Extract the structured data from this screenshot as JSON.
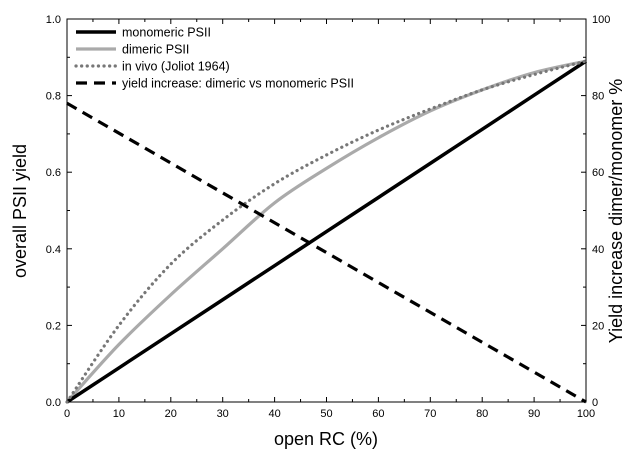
{
  "chart_data": {
    "type": "line",
    "title": "",
    "xlabel": "open RC (%)",
    "ylabel": "overall PSII yield",
    "y2label": "Yield increase dimer/monomer %",
    "xlim": [
      0,
      100
    ],
    "ylim": [
      0,
      1.0
    ],
    "y2lim": [
      0,
      100
    ],
    "xticks": [
      0,
      10,
      20,
      30,
      40,
      50,
      60,
      70,
      80,
      90,
      100
    ],
    "yticks": [
      0.0,
      0.2,
      0.4,
      0.6,
      0.8,
      1.0
    ],
    "y2ticks": [
      0,
      20,
      40,
      60,
      80,
      100
    ],
    "xtick_labels": [
      "0",
      "10",
      "20",
      "30",
      "40",
      "50",
      "60",
      "70",
      "80",
      "90",
      "100"
    ],
    "ytick_labels": [
      "0.0",
      "0.2",
      "0.4",
      "0.6",
      "0.8",
      "1.0"
    ],
    "y2tick_labels": [
      "0",
      "20",
      "40",
      "60",
      "80",
      "100"
    ],
    "grid": false,
    "legend_position": "top-left",
    "series": [
      {
        "name": "monomeric PSII",
        "axis": "left",
        "style": "solid",
        "color": "#000000",
        "x": [
          0,
          10,
          20,
          30,
          40,
          50,
          60,
          70,
          80,
          90,
          100
        ],
        "y": [
          0.0,
          0.089,
          0.178,
          0.267,
          0.356,
          0.445,
          0.534,
          0.623,
          0.712,
          0.801,
          0.89
        ]
      },
      {
        "name": "dimeric PSII",
        "axis": "left",
        "style": "solid",
        "color": "#aaaaaa",
        "x": [
          0,
          10,
          20,
          30,
          40,
          50,
          60,
          70,
          80,
          90,
          100
        ],
        "y": [
          0.0,
          0.15,
          0.28,
          0.4,
          0.52,
          0.61,
          0.69,
          0.76,
          0.815,
          0.86,
          0.89
        ]
      },
      {
        "name": "in vivo (Joliot 1964)",
        "axis": "left",
        "style": "dotted",
        "color": "#777777",
        "x": [
          0,
          10,
          20,
          30,
          40,
          50,
          60,
          70,
          80,
          90,
          100
        ],
        "y": [
          0.0,
          0.2,
          0.36,
          0.475,
          0.57,
          0.645,
          0.71,
          0.765,
          0.815,
          0.855,
          0.89
        ]
      },
      {
        "name": "yield increase: dimeric vs monomeric PSII",
        "axis": "right",
        "style": "dashed",
        "color": "#000000",
        "x": [
          0,
          100
        ],
        "y": [
          78,
          0
        ]
      }
    ]
  }
}
